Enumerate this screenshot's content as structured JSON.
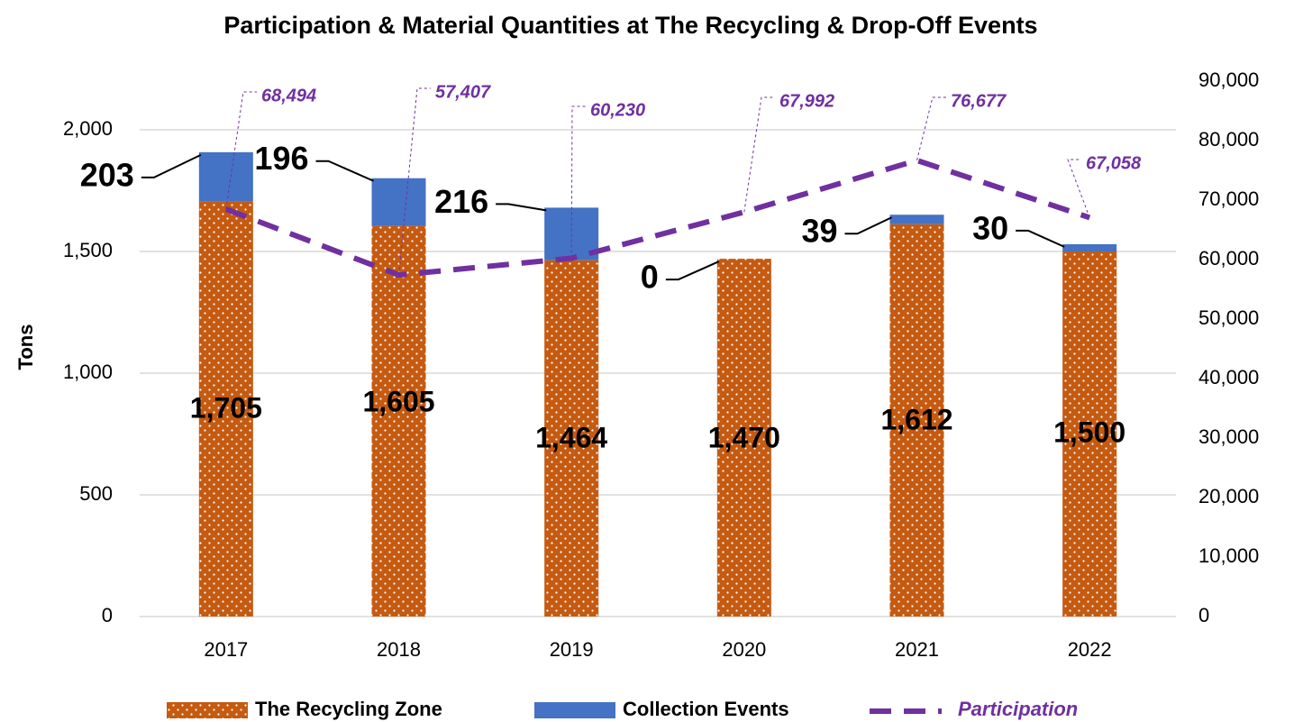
{
  "chart_data": {
    "type": "bar",
    "title": "Participation & Material Quantities at The Recycling & Drop-Off Events",
    "ylabel": "Tons",
    "categories": [
      "2017",
      "2018",
      "2019",
      "2020",
      "2021",
      "2022"
    ],
    "series": [
      {
        "name": "The Recycling Zone",
        "color": "#c55a11",
        "values": [
          1705,
          1605,
          1464,
          1470,
          1612,
          1500
        ],
        "value_labels": [
          "1,705",
          "1,605",
          "1,464",
          "1,470",
          "1,612",
          "1,500"
        ]
      },
      {
        "name": "Collection Events",
        "color": "#4472c4",
        "values": [
          203,
          196,
          216,
          0,
          39,
          30
        ]
      },
      {
        "name": "Participation",
        "color": "#7030a0",
        "type": "line",
        "axis": "y2",
        "values": [
          68494,
          57407,
          60230,
          67992,
          76677,
          67058
        ],
        "value_labels": [
          "68,494",
          "57,407",
          "60,230",
          "67,992",
          "76,677",
          "67,058"
        ]
      }
    ],
    "stacked": true,
    "ylim": [
      0,
      2200
    ],
    "yticks": [
      0,
      500,
      {
        "value": 1000,
        "label": "1,000"
      },
      {
        "value": 1500,
        "label": "1,500"
      },
      {
        "value": 2000,
        "label": "2,000"
      }
    ],
    "y2lim": [
      0,
      90000
    ],
    "y2ticks": [
      0,
      {
        "value": 10000,
        "label": "10,000"
      },
      {
        "value": 20000,
        "label": "20,000"
      },
      {
        "value": 30000,
        "label": "30,000"
      },
      {
        "value": 40000,
        "label": "40,000"
      },
      {
        "value": 50000,
        "label": "50,000"
      },
      {
        "value": 60000,
        "label": "60,000"
      },
      {
        "value": 70000,
        "label": "70,000"
      },
      {
        "value": 80000,
        "label": "80,000"
      },
      {
        "value": 90000,
        "label": "90,000"
      }
    ],
    "grid": true,
    "legend": "bottom"
  }
}
